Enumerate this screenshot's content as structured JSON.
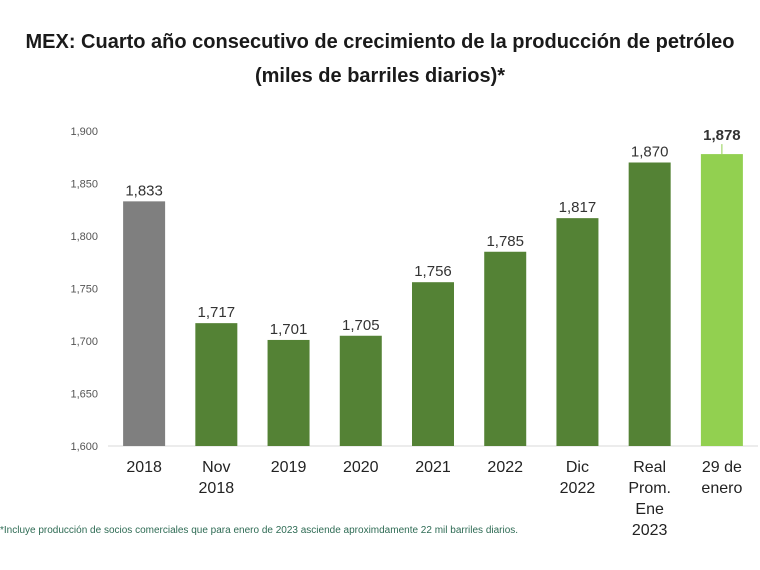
{
  "title_line1": "MEX: Cuarto año consecutivo de crecimiento de la producción de petróleo",
  "title_line2": "(miles de barriles diarios)*",
  "footnote": "*Incluye producción de socios comerciales que para enero de 2023 asciende aproximdamente 22 mil barriles diarios.",
  "chart_data": {
    "type": "bar",
    "ylim": [
      1600,
      1900
    ],
    "y_ticks": [
      "1,600",
      "1,650",
      "1,700",
      "1,750",
      "1,800",
      "1,850",
      "1,900"
    ],
    "categories": [
      [
        "2018"
      ],
      [
        "Nov",
        "2018"
      ],
      [
        "2019"
      ],
      [
        "2020"
      ],
      [
        "2021"
      ],
      [
        "2022"
      ],
      [
        "Dic",
        "2022"
      ],
      [
        "Real",
        "Prom.",
        "Ene",
        "2023"
      ],
      [
        "29 de",
        "enero"
      ]
    ],
    "values": [
      1833,
      1717,
      1701,
      1705,
      1756,
      1785,
      1817,
      1870,
      1878
    ],
    "labels": [
      "1,833",
      "1,717",
      "1,701",
      "1,705",
      "1,756",
      "1,785",
      "1,817",
      "1,870",
      "1,878"
    ],
    "colors": [
      "#7f7f7f",
      "#548235",
      "#548235",
      "#548235",
      "#548235",
      "#548235",
      "#548235",
      "#548235",
      "#92d050"
    ],
    "bold_labels": [
      false,
      false,
      false,
      false,
      false,
      false,
      false,
      false,
      true
    ],
    "grid": false
  }
}
